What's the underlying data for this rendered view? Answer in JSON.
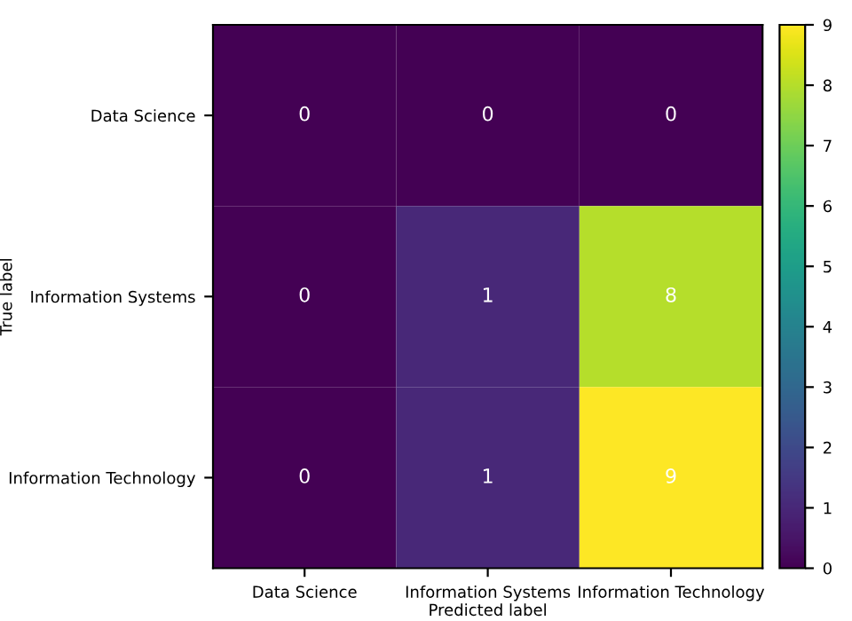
{
  "chart_data": {
    "type": "heatmap",
    "xlabel": "Predicted label",
    "ylabel": "True label",
    "categories": [
      "Data Science",
      "Information Systems",
      "Information Technology"
    ],
    "y_categories": [
      "Data Science",
      "Information Systems",
      "Information Technology"
    ],
    "cells": [
      [
        0,
        0,
        0
      ],
      [
        0,
        1,
        8
      ],
      [
        0,
        1,
        9
      ]
    ],
    "clim": [
      0,
      9
    ],
    "cticks": [
      0,
      1,
      2,
      3,
      4,
      5,
      6,
      7,
      8,
      9
    ],
    "data_labels": true,
    "grid": false
  }
}
